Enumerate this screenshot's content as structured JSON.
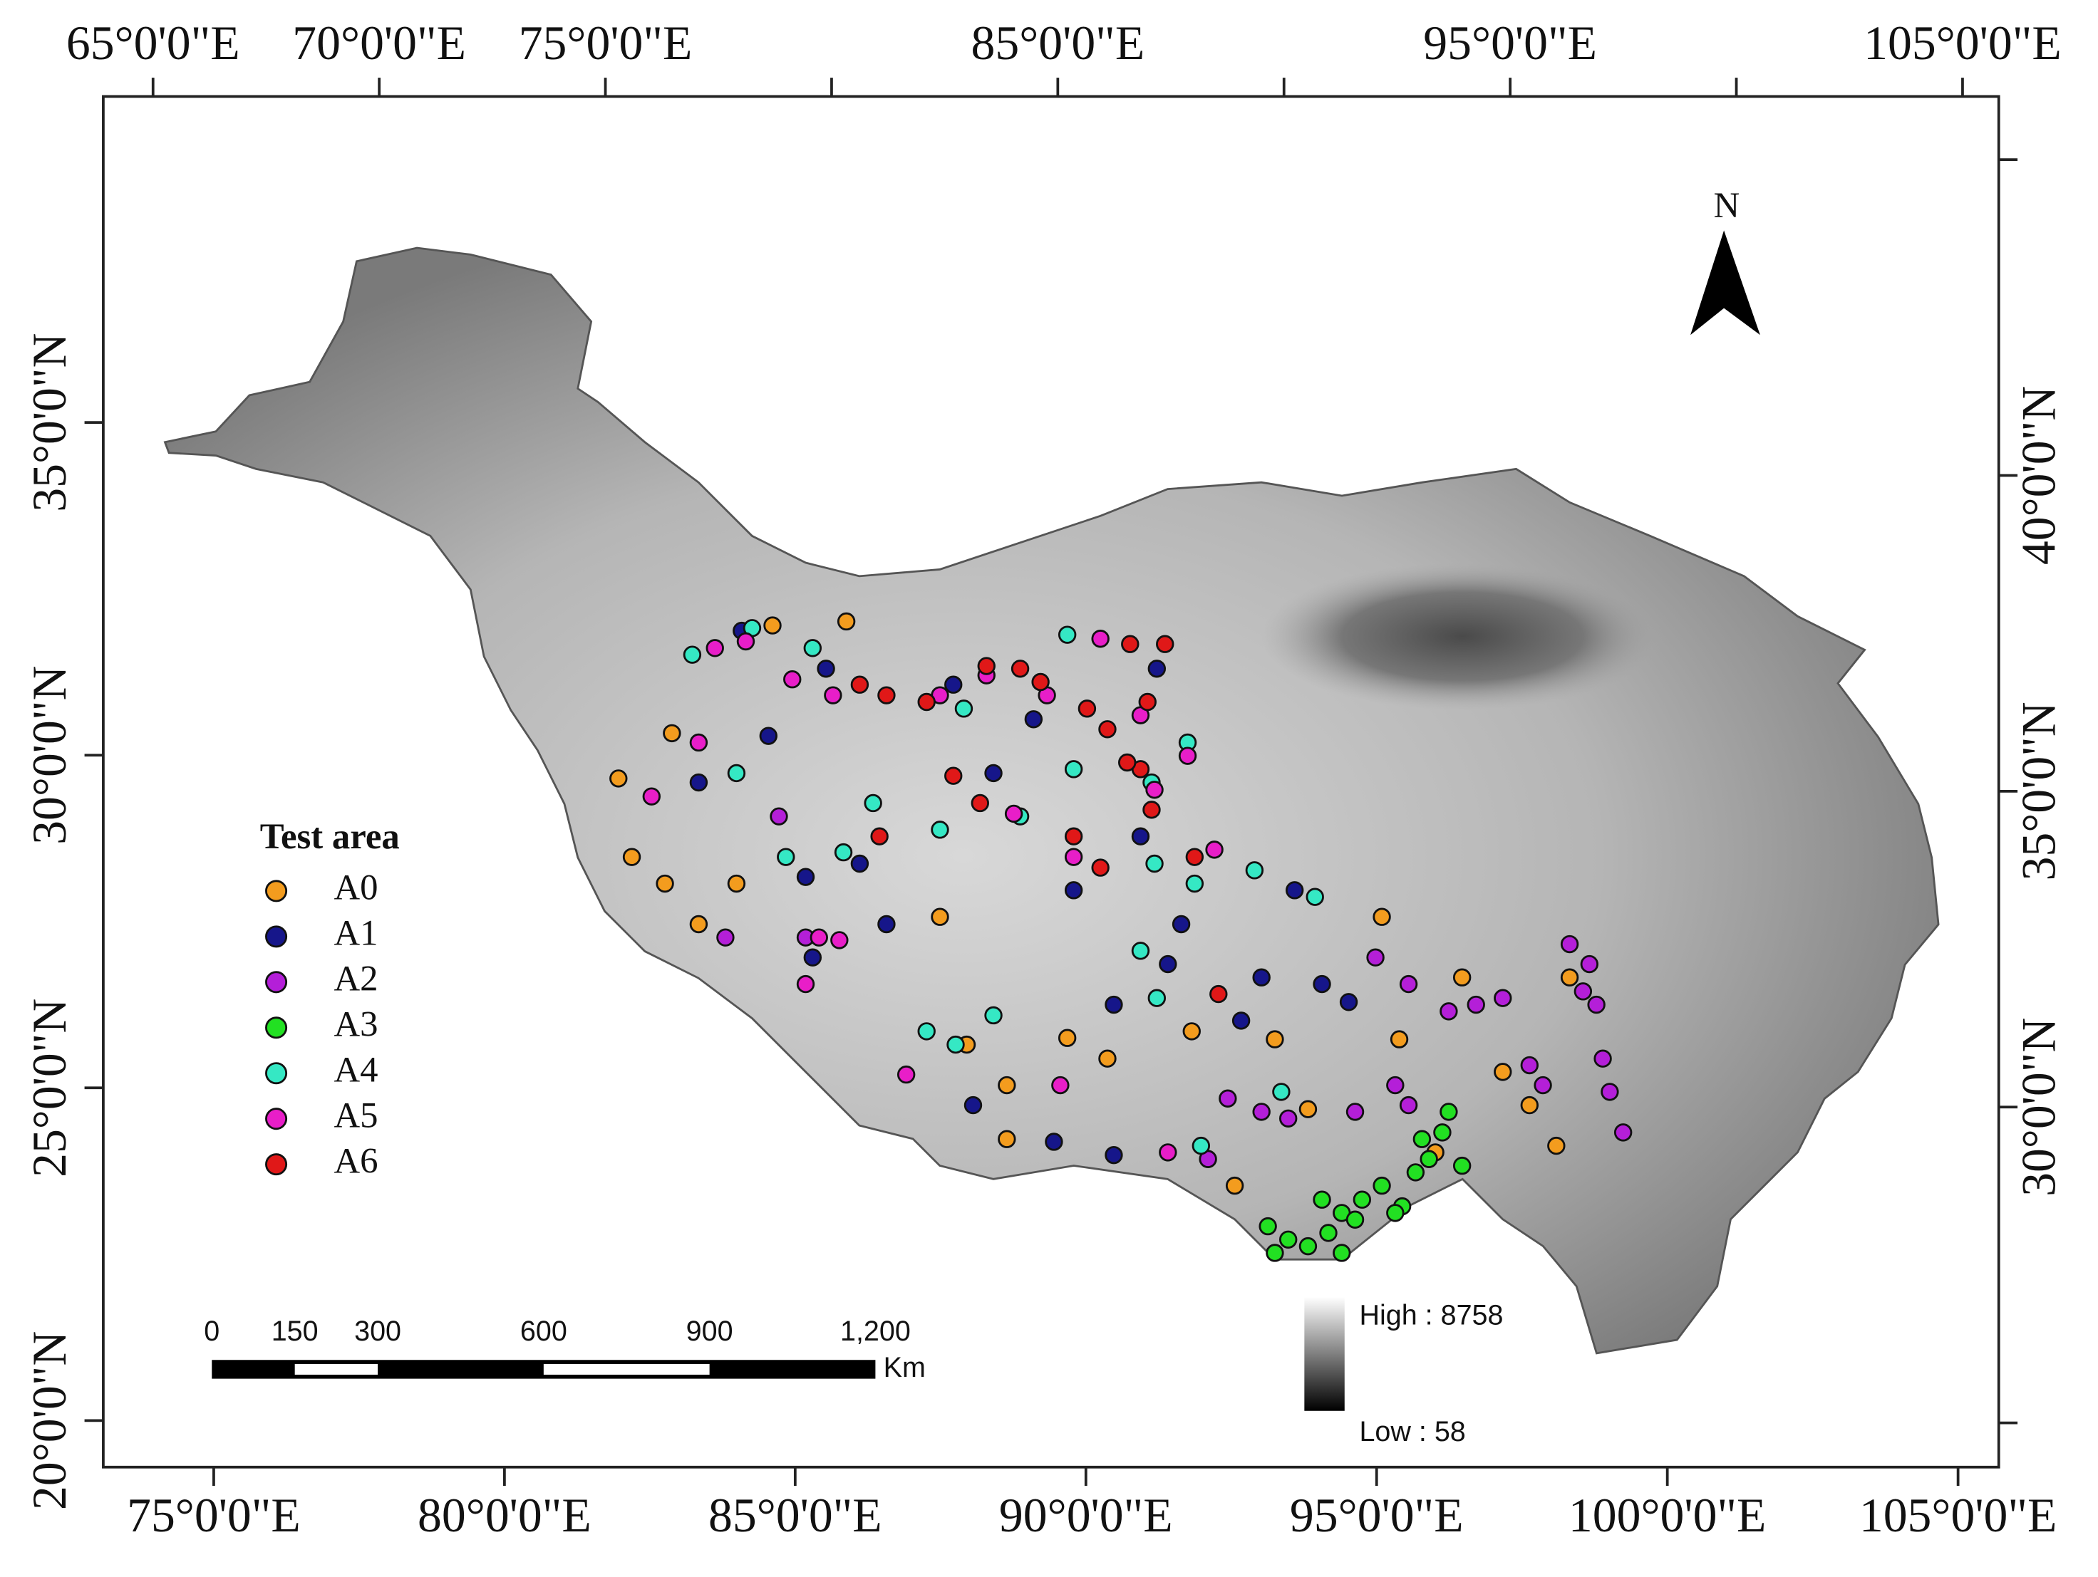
{
  "map_data": {
    "bottom_axis": {
      "lim": [
        73.1,
        105.7
      ],
      "ticks": [
        {
          "value": 75,
          "label": "75°0'0\"E"
        },
        {
          "value": 80,
          "label": "80°0'0\"E"
        },
        {
          "value": 85,
          "label": "85°0'0\"E"
        },
        {
          "value": 90,
          "label": "90°0'0\"E"
        },
        {
          "value": 95,
          "label": "95°0'0\"E"
        },
        {
          "value": 100,
          "label": "100°0'0\"E"
        },
        {
          "value": 105,
          "label": "105°0'0\"E"
        }
      ]
    },
    "top_axis": {
      "lim": [
        63.9,
        105.8
      ],
      "ticks": [
        {
          "value": 65,
          "label": "65°0'0\"E"
        },
        {
          "value": 70,
          "label": "70°0'0\"E"
        },
        {
          "value": 75,
          "label": "75°0'0\"E"
        },
        {
          "value": 80,
          "label": null
        },
        {
          "value": 85,
          "label": "85°0'0\"E"
        },
        {
          "value": 90,
          "label": null
        },
        {
          "value": 95,
          "label": "95°0'0\"E"
        },
        {
          "value": 100,
          "label": null
        },
        {
          "value": 105,
          "label": "105°0'0\"E"
        }
      ]
    },
    "left_axis": {
      "lim": [
        19.3,
        39.9
      ],
      "ticks": [
        {
          "value": 35,
          "label": "35°0'0\"N"
        },
        {
          "value": 30,
          "label": "30°0'0\"N"
        },
        {
          "value": 25,
          "label": "25°0'0\"N"
        },
        {
          "value": 20,
          "label": "20°0'0\"N"
        }
      ]
    },
    "right_axis": {
      "lim": [
        24.3,
        46.0
      ],
      "ticks": [
        {
          "value": 45,
          "label": null
        },
        {
          "value": 40,
          "label": "40°0'0\"N"
        },
        {
          "value": 35,
          "label": "35°0'0\"N"
        },
        {
          "value": 30,
          "label": "30°0'0\"N"
        },
        {
          "value": 25,
          "label": null
        }
      ]
    },
    "north_label": "N",
    "legend_title": "Test area",
    "series": [
      {
        "name": "A0",
        "color": "#f39c1e",
        "points": [
          [
            81.96,
            29.65
          ],
          [
            82.19,
            28.47
          ],
          [
            82.76,
            28.07
          ],
          [
            82.88,
            30.33
          ],
          [
            83.34,
            27.46
          ],
          [
            83.99,
            28.07
          ],
          [
            84.61,
            31.95
          ],
          [
            85.88,
            32.01
          ],
          [
            87.49,
            27.57
          ],
          [
            87.95,
            25.65
          ],
          [
            88.64,
            25.04
          ],
          [
            89.68,
            25.75
          ],
          [
            90.37,
            25.44
          ],
          [
            91.82,
            25.85
          ],
          [
            93.25,
            25.73
          ],
          [
            93.82,
            24.68
          ],
          [
            95.39,
            25.73
          ],
          [
            96.01,
            24.03
          ],
          [
            97.17,
            25.24
          ],
          [
            97.63,
            24.74
          ],
          [
            98.09,
            24.13
          ],
          [
            98.32,
            26.66
          ],
          [
            95.09,
            27.57
          ],
          [
            96.47,
            26.66
          ],
          [
            92.56,
            23.53
          ],
          [
            88.64,
            24.23
          ]
        ]
      },
      {
        "name": "A1",
        "color": "#16168a",
        "points": [
          [
            84.08,
            31.87
          ],
          [
            84.54,
            30.29
          ],
          [
            83.34,
            29.59
          ],
          [
            85.18,
            28.17
          ],
          [
            86.11,
            28.37
          ],
          [
            85.3,
            26.96
          ],
          [
            86.57,
            27.46
          ],
          [
            85.53,
            31.3
          ],
          [
            87.72,
            31.06
          ],
          [
            88.41,
            29.73
          ],
          [
            89.1,
            30.54
          ],
          [
            89.79,
            27.97
          ],
          [
            90.48,
            26.25
          ],
          [
            91.41,
            26.86
          ],
          [
            92.67,
            26.01
          ],
          [
            93.02,
            26.66
          ],
          [
            93.59,
            27.97
          ],
          [
            94.52,
            26.29
          ],
          [
            91.64,
            27.46
          ],
          [
            94.06,
            26.56
          ],
          [
            88.06,
            24.74
          ],
          [
            90.48,
            23.99
          ],
          [
            89.45,
            24.19
          ],
          [
            91.22,
            31.3
          ],
          [
            90.94,
            28.78
          ]
        ]
      },
      {
        "name": "A2",
        "color": "#b41fd8",
        "points": [
          [
            98.32,
            27.16
          ],
          [
            98.66,
            26.86
          ],
          [
            98.78,
            26.25
          ],
          [
            98.89,
            25.44
          ],
          [
            99.01,
            24.94
          ],
          [
            99.24,
            24.33
          ],
          [
            98.55,
            26.45
          ],
          [
            97.63,
            25.34
          ],
          [
            97.86,
            25.04
          ],
          [
            96.71,
            26.25
          ],
          [
            97.17,
            26.35
          ],
          [
            96.24,
            26.15
          ],
          [
            95.55,
            26.56
          ],
          [
            94.98,
            26.96
          ],
          [
            95.32,
            25.04
          ],
          [
            95.55,
            24.74
          ],
          [
            94.63,
            24.64
          ],
          [
            93.48,
            24.54
          ],
          [
            92.44,
            24.84
          ],
          [
            93.02,
            24.64
          ],
          [
            92.1,
            23.93
          ],
          [
            84.72,
            29.08
          ],
          [
            85.18,
            27.26
          ],
          [
            83.8,
            27.26
          ]
        ]
      },
      {
        "name": "A3",
        "color": "#22e022",
        "points": [
          [
            93.13,
            22.92
          ],
          [
            93.48,
            22.72
          ],
          [
            93.82,
            22.62
          ],
          [
            94.17,
            22.82
          ],
          [
            94.4,
            23.12
          ],
          [
            94.75,
            23.32
          ],
          [
            95.09,
            23.53
          ],
          [
            95.44,
            23.22
          ],
          [
            95.67,
            23.73
          ],
          [
            95.9,
            23.93
          ],
          [
            96.13,
            24.33
          ],
          [
            96.24,
            24.64
          ],
          [
            95.78,
            24.23
          ],
          [
            94.06,
            23.32
          ],
          [
            93.25,
            22.52
          ],
          [
            94.63,
            23.02
          ],
          [
            95.32,
            23.12
          ],
          [
            96.47,
            23.83
          ],
          [
            94.4,
            22.52
          ]
        ]
      },
      {
        "name": "A4",
        "color": "#35e8c4",
        "points": [
          [
            83.23,
            31.51
          ],
          [
            83.99,
            29.73
          ],
          [
            84.84,
            28.47
          ],
          [
            85.83,
            28.54
          ],
          [
            86.34,
            29.28
          ],
          [
            87.49,
            28.88
          ],
          [
            87.9,
            30.7
          ],
          [
            88.87,
            29.08
          ],
          [
            89.79,
            29.79
          ],
          [
            91.13,
            29.59
          ],
          [
            91.75,
            30.19
          ],
          [
            91.18,
            28.37
          ],
          [
            91.87,
            28.07
          ],
          [
            92.9,
            28.27
          ],
          [
            93.94,
            27.87
          ],
          [
            90.94,
            27.06
          ],
          [
            91.22,
            26.35
          ],
          [
            87.26,
            25.85
          ],
          [
            87.76,
            25.65
          ],
          [
            89.68,
            31.81
          ],
          [
            88.41,
            26.09
          ],
          [
            93.36,
            24.94
          ],
          [
            91.98,
            24.13
          ],
          [
            84.26,
            31.91
          ],
          [
            85.3,
            31.61
          ]
        ]
      },
      {
        "name": "A5",
        "color": "#e81ec8",
        "points": [
          [
            83.62,
            31.61
          ],
          [
            84.15,
            31.71
          ],
          [
            84.95,
            31.14
          ],
          [
            85.65,
            30.9
          ],
          [
            87.49,
            30.9
          ],
          [
            88.29,
            31.2
          ],
          [
            89.33,
            30.9
          ],
          [
            90.25,
            31.75
          ],
          [
            90.94,
            30.6
          ],
          [
            91.75,
            29.99
          ],
          [
            91.18,
            29.48
          ],
          [
            89.79,
            28.47
          ],
          [
            92.21,
            28.58
          ],
          [
            85.41,
            27.26
          ],
          [
            85.76,
            27.22
          ],
          [
            85.18,
            26.56
          ],
          [
            86.91,
            25.2
          ],
          [
            89.56,
            25.04
          ],
          [
            83.34,
            30.19
          ],
          [
            82.53,
            29.38
          ],
          [
            88.76,
            29.12
          ],
          [
            91.41,
            24.03
          ]
        ]
      },
      {
        "name": "A6",
        "color": "#e01818",
        "points": [
          [
            86.11,
            31.06
          ],
          [
            86.57,
            30.9
          ],
          [
            87.26,
            30.8
          ],
          [
            87.72,
            29.69
          ],
          [
            88.29,
            31.34
          ],
          [
            88.87,
            31.3
          ],
          [
            89.22,
            31.1
          ],
          [
            90.02,
            30.7
          ],
          [
            90.37,
            30.39
          ],
          [
            90.76,
            31.67
          ],
          [
            91.06,
            30.8
          ],
          [
            91.36,
            31.67
          ],
          [
            90.94,
            29.79
          ],
          [
            91.13,
            29.18
          ],
          [
            91.87,
            28.47
          ],
          [
            89.79,
            28.78
          ],
          [
            90.25,
            28.31
          ],
          [
            92.28,
            26.41
          ],
          [
            86.45,
            28.78
          ],
          [
            88.18,
            29.28
          ],
          [
            90.71,
            29.89
          ]
        ]
      }
    ],
    "scale_bar": {
      "unit": "Km",
      "ticks": [
        0,
        150,
        300,
        600,
        900,
        {
          "value": 1200,
          "label": "1,200"
        }
      ]
    },
    "elevation_legend": {
      "high": "High : 8758",
      "low": "Low : 58"
    }
  }
}
